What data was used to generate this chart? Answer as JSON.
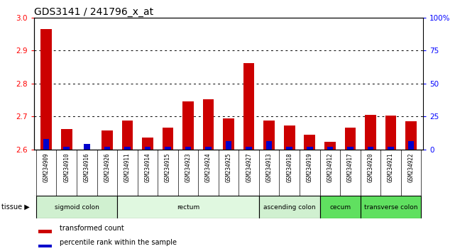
{
  "title": "GDS3141 / 241796_x_at",
  "samples": [
    "GSM234909",
    "GSM234910",
    "GSM234916",
    "GSM234926",
    "GSM234911",
    "GSM234914",
    "GSM234915",
    "GSM234923",
    "GSM234924",
    "GSM234925",
    "GSM234927",
    "GSM234913",
    "GSM234918",
    "GSM234919",
    "GSM234912",
    "GSM234917",
    "GSM234920",
    "GSM234921",
    "GSM234922"
  ],
  "red_values": [
    2.965,
    2.662,
    2.6,
    2.657,
    2.688,
    2.635,
    2.667,
    2.745,
    2.752,
    2.693,
    2.862,
    2.688,
    2.672,
    2.645,
    2.623,
    2.665,
    2.705,
    2.703,
    2.685
  ],
  "blue_values": [
    0.08,
    0.02,
    0.04,
    0.02,
    0.02,
    0.02,
    0.02,
    0.02,
    0.02,
    0.06,
    0.02,
    0.06,
    0.02,
    0.02,
    0.02,
    0.02,
    0.02,
    0.02,
    0.06
  ],
  "ymin": 2.6,
  "ymax": 3.0,
  "yticks": [
    2.6,
    2.7,
    2.8,
    2.9,
    3.0
  ],
  "right_yticks": [
    0,
    25,
    50,
    75,
    100
  ],
  "right_ytick_labels": [
    "0",
    "25",
    "50",
    "75",
    "100%"
  ],
  "tissue_groups": [
    {
      "label": "sigmoid colon",
      "start": 0,
      "end": 4,
      "color": "#d0f0d0"
    },
    {
      "label": "rectum",
      "start": 4,
      "end": 11,
      "color": "#e0f8e0"
    },
    {
      "label": "ascending colon",
      "start": 11,
      "end": 14,
      "color": "#d0f0d0"
    },
    {
      "label": "cecum",
      "start": 14,
      "end": 16,
      "color": "#60e060"
    },
    {
      "label": "transverse colon",
      "start": 16,
      "end": 19,
      "color": "#60e060"
    }
  ],
  "bar_color_red": "#cc0000",
  "bar_color_blue": "#0000cc",
  "sample_bg": "#d0d0d0",
  "plot_bg": "#ffffff",
  "bar_width": 0.55,
  "blue_bar_width": 0.3,
  "legend_red": "transformed count",
  "legend_blue": "percentile rank within the sample",
  "grid_color": "#000000",
  "title_fontsize": 10,
  "tick_fontsize": 7.5,
  "sample_fontsize": 5.5,
  "tissue_fontsize": 6.5,
  "legend_fontsize": 7
}
